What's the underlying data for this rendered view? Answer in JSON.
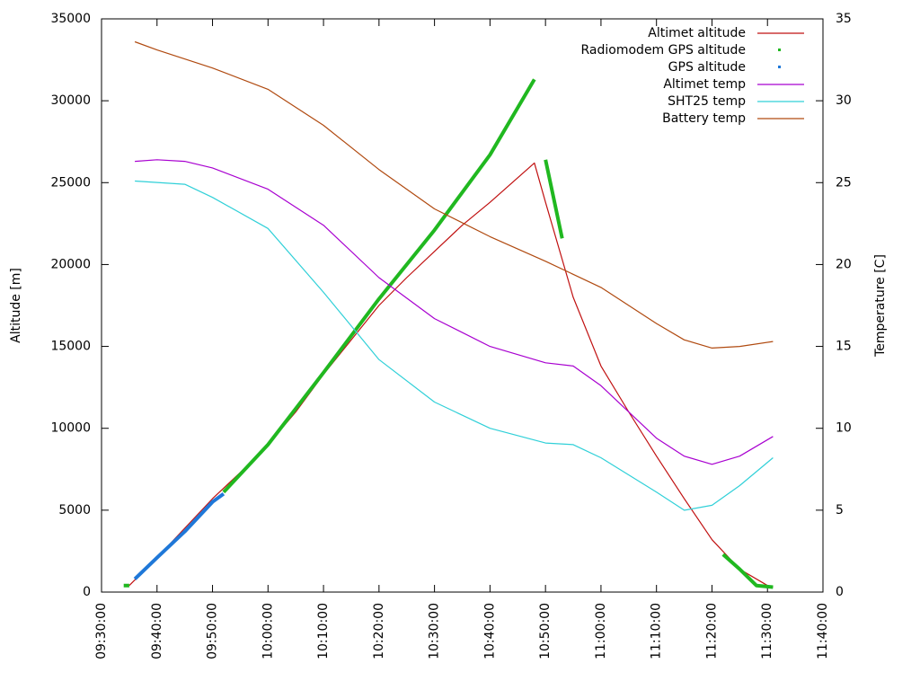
{
  "chart_data": {
    "type": "line",
    "xlabel": "",
    "ylabel": "Altitude [m]",
    "y2label": "Temperature [C]",
    "xlim": [
      "09:30:00",
      "11:40:00"
    ],
    "xticks": [
      "09:30:00",
      "09:40:00",
      "09:50:00",
      "10:00:00",
      "10:10:00",
      "10:20:00",
      "10:30:00",
      "10:40:00",
      "10:50:00",
      "11:00:00",
      "11:10:00",
      "11:20:00",
      "11:30:00",
      "11:40:00"
    ],
    "ylim": [
      0,
      35000
    ],
    "yticks": [
      0,
      5000,
      10000,
      15000,
      20000,
      25000,
      30000,
      35000
    ],
    "y2lim": [
      0,
      35
    ],
    "y2ticks": [
      0,
      5,
      10,
      15,
      20,
      25,
      30,
      35
    ],
    "legend": "upper right",
    "series": [
      {
        "name": "Altimet altitude",
        "color": "#c01010",
        "style": "lines",
        "axis": "y",
        "x": [
          "09:35:00",
          "09:40:00",
          "09:45:00",
          "09:50:00",
          "09:55:00",
          "10:00:00",
          "10:05:00",
          "10:10:00",
          "10:15:00",
          "10:20:00",
          "10:25:00",
          "10:30:00",
          "10:35:00",
          "10:40:00",
          "10:45:00",
          "10:48:00",
          "10:50:00",
          "10:55:00",
          "11:00:00",
          "11:05:00",
          "11:10:00",
          "11:15:00",
          "11:20:00",
          "11:25:00",
          "11:30:00",
          "11:31:00"
        ],
        "values": [
          400,
          2100,
          3900,
          5700,
          7300,
          9000,
          11000,
          13300,
          15400,
          17500,
          19200,
          20800,
          22400,
          23800,
          25300,
          26200,
          23800,
          18000,
          13800,
          11000,
          8300,
          5700,
          3200,
          1400,
          400,
          300
        ]
      },
      {
        "name": "Radiomodem GPS altitude",
        "color": "#20b820",
        "style": "points",
        "axis": "y",
        "x": [
          "09:34:00",
          "09:35:00",
          "09:36:00",
          "09:52:00",
          "10:00:00",
          "10:10:00",
          "10:20:00",
          "10:30:00",
          "10:40:00",
          "10:48:00",
          "10:49:00",
          "10:50:00",
          "10:53:00",
          "11:00:00",
          "11:22:00",
          "11:25:00",
          "11:28:00",
          "11:31:00"
        ],
        "values": [
          400,
          400,
          null,
          6100,
          9000,
          13400,
          17900,
          22100,
          26700,
          31300,
          null,
          26400,
          21600,
          null,
          2300,
          1400,
          400,
          300
        ]
      },
      {
        "name": "GPS altitude",
        "color": "#1f78d8",
        "style": "points",
        "axis": "y",
        "x": [
          "09:36:00",
          "09:40:00",
          "09:45:00",
          "09:50:00",
          "09:52:00"
        ],
        "values": [
          800,
          2100,
          3700,
          5500,
          6000
        ]
      },
      {
        "name": "Altimet temp",
        "color": "#a800d0",
        "style": "lines",
        "axis": "y2",
        "x": [
          "09:36:00",
          "09:40:00",
          "09:45:00",
          "09:50:00",
          "10:00:00",
          "10:10:00",
          "10:20:00",
          "10:30:00",
          "10:40:00",
          "10:50:00",
          "10:55:00",
          "11:00:00",
          "11:10:00",
          "11:15:00",
          "11:20:00",
          "11:25:00",
          "11:31:00"
        ],
        "values": [
          26.3,
          26.4,
          26.3,
          25.9,
          24.6,
          22.4,
          19.2,
          16.7,
          15.0,
          14.0,
          13.8,
          12.6,
          9.4,
          8.3,
          7.8,
          8.3,
          9.5
        ]
      },
      {
        "name": "SHT25 temp",
        "color": "#30d0d8",
        "style": "lines",
        "axis": "y2",
        "x": [
          "09:36:00",
          "09:45:00",
          "09:50:00",
          "10:00:00",
          "10:10:00",
          "10:20:00",
          "10:30:00",
          "10:40:00",
          "10:50:00",
          "10:55:00",
          "11:00:00",
          "11:10:00",
          "11:15:00",
          "11:20:00",
          "11:25:00",
          "11:31:00"
        ],
        "values": [
          25.1,
          24.9,
          24.1,
          22.2,
          18.3,
          14.2,
          11.6,
          10.0,
          9.1,
          9.0,
          8.2,
          6.1,
          5.0,
          5.3,
          6.5,
          8.2
        ]
      },
      {
        "name": "Battery temp",
        "color": "#b04a10",
        "style": "lines",
        "axis": "y2",
        "x": [
          "09:36:00",
          "09:40:00",
          "09:50:00",
          "10:00:00",
          "10:10:00",
          "10:20:00",
          "10:30:00",
          "10:40:00",
          "10:50:00",
          "11:00:00",
          "11:10:00",
          "11:15:00",
          "11:20:00",
          "11:25:00",
          "11:31:00"
        ],
        "values": [
          33.6,
          33.1,
          32.0,
          30.7,
          28.5,
          25.8,
          23.4,
          21.7,
          20.2,
          18.6,
          16.4,
          15.4,
          14.9,
          15.0,
          15.3
        ]
      }
    ]
  }
}
